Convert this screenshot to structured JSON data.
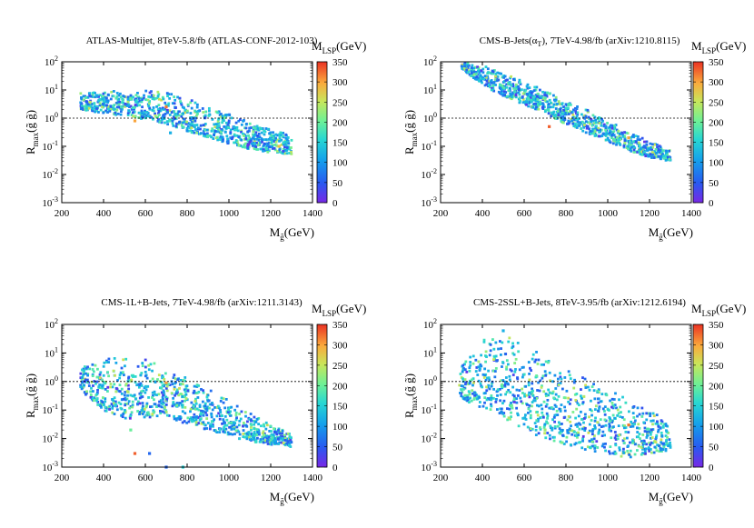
{
  "figure": {
    "colorbar": {
      "label_main": "M",
      "label_sub": "LSP",
      "label_unit": "(GeV)",
      "ticks": [
        0,
        50,
        100,
        150,
        200,
        250,
        300,
        350
      ],
      "range": [
        0,
        350
      ],
      "colormap": "rainbow"
    }
  },
  "chart_data": [
    {
      "type": "scatter",
      "title": "ATLAS-Multijet, 8TeV-5.8/fb (ATLAS-CONF-2012-103)",
      "xlabel": "M_g~(GeV)",
      "ylabel": "R_max(g~ g~)",
      "xlim": [
        200,
        1400
      ],
      "ylim": [
        0.001,
        100
      ],
      "yscale": "log",
      "xticks": [
        "200",
        "400",
        "600",
        "800",
        "1000",
        "1200",
        "1400"
      ],
      "yticks": [
        0.001,
        0.01,
        0.1,
        1,
        10,
        100
      ],
      "reference_line": 1,
      "series": [
        {
          "color_by": "M_LSP",
          "envelope_x": [
            290,
            400,
            500,
            600,
            700,
            800,
            900,
            1000,
            1100,
            1200,
            1300
          ],
          "envelope_upper": [
            8,
            9,
            10,
            10,
            9,
            5,
            3,
            1.5,
            0.8,
            0.4,
            0.25
          ],
          "envelope_lower": [
            2,
            1.5,
            1.2,
            0.9,
            0.6,
            0.35,
            0.2,
            0.12,
            0.08,
            0.06,
            0.05
          ],
          "points": [
            [
              550,
              0.8,
              300
            ],
            [
              720,
              0.3,
              120
            ],
            [
              700,
              2.5,
              320
            ],
            [
              1240,
              0.1,
              280
            ]
          ]
        }
      ]
    },
    {
      "type": "scatter",
      "title": "CMS-B-Jets(α_T), 7TeV-4.98/fb (arXiv:1210.8115)",
      "xlabel": "M_g~(GeV)",
      "ylabel": "R_max(g~ g~)",
      "xlim": [
        200,
        1400
      ],
      "ylim": [
        0.001,
        100
      ],
      "yscale": "log",
      "xticks": [
        "200",
        "400",
        "600",
        "800",
        "1000",
        "1200",
        "1400"
      ],
      "yticks": [
        0.001,
        0.01,
        0.1,
        1,
        10,
        100
      ],
      "reference_line": 1,
      "series": [
        {
          "color_by": "M_LSP",
          "envelope_x": [
            300,
            400,
            500,
            600,
            700,
            800,
            900,
            1000,
            1100,
            1200,
            1300
          ],
          "envelope_upper": [
            100,
            80,
            40,
            20,
            10,
            4,
            2,
            0.8,
            0.4,
            0.15,
            0.08
          ],
          "envelope_lower": [
            60,
            15,
            6,
            3,
            1.5,
            0.6,
            0.3,
            0.15,
            0.07,
            0.04,
            0.03
          ],
          "points": [
            [
              720,
              0.5,
              330
            ],
            [
              1100,
              0.2,
              300
            ]
          ]
        }
      ]
    },
    {
      "type": "scatter",
      "title": "CMS-1L+B-Jets, 7TeV-4.98/fb (arXiv:1211.3143)",
      "xlabel": "M_g~(GeV)",
      "ylabel": "R_max(g~ g~)",
      "xlim": [
        200,
        1400
      ],
      "ylim": [
        0.001,
        100
      ],
      "yscale": "log",
      "xticks": [
        "200",
        "400",
        "600",
        "800",
        "1000",
        "1200",
        "1400"
      ],
      "yticks": [
        0.001,
        0.01,
        0.1,
        1,
        10,
        100
      ],
      "reference_line": 1,
      "series": [
        {
          "color_by": "M_LSP",
          "envelope_x": [
            290,
            400,
            500,
            600,
            700,
            800,
            900,
            1000,
            1100,
            1200,
            1300
          ],
          "envelope_upper": [
            3,
            6,
            8,
            6,
            3,
            1.5,
            0.6,
            0.25,
            0.08,
            0.03,
            0.015
          ],
          "envelope_lower": [
            0.5,
            0.1,
            0.05,
            0.05,
            0.06,
            0.03,
            0.02,
            0.012,
            0.008,
            0.006,
            0.005
          ],
          "points": [
            [
              550,
              0.003,
              330
            ],
            [
              620,
              0.003,
              60
            ],
            [
              700,
              0.001,
              60
            ],
            [
              780,
              0.001,
              150
            ],
            [
              530,
              0.02,
              200
            ],
            [
              700,
              0.9,
              300
            ]
          ]
        }
      ]
    },
    {
      "type": "scatter",
      "title": "CMS-2SSL+B-Jets, 8TeV-3.95/fb (arXiv:1212.6194)",
      "xlabel": "M_g~(GeV)",
      "ylabel": "R_max(g~ g~)",
      "xlim": [
        200,
        1400
      ],
      "ylim": [
        0.001,
        100
      ],
      "yscale": "log",
      "xticks": [
        "200",
        "400",
        "600",
        "800",
        "1000",
        "1200",
        "1400"
      ],
      "yticks": [
        0.001,
        0.01,
        0.1,
        1,
        10,
        100
      ],
      "reference_line": 1,
      "series": [
        {
          "color_by": "M_LSP",
          "envelope_x": [
            290,
            400,
            500,
            600,
            700,
            800,
            900,
            1000,
            1100,
            1200,
            1300
          ],
          "envelope_upper": [
            3,
            30,
            50,
            20,
            8,
            3,
            1.5,
            0.6,
            0.3,
            0.1,
            0.05
          ],
          "envelope_lower": [
            0.3,
            0.1,
            0.05,
            0.02,
            0.01,
            0.006,
            0.004,
            0.003,
            0.002,
            0.003,
            0.004
          ],
          "points": [
            [
              1100,
              0.03,
              320
            ],
            [
              700,
              0.02,
              230
            ],
            [
              500,
              60,
              120
            ]
          ]
        }
      ]
    }
  ]
}
